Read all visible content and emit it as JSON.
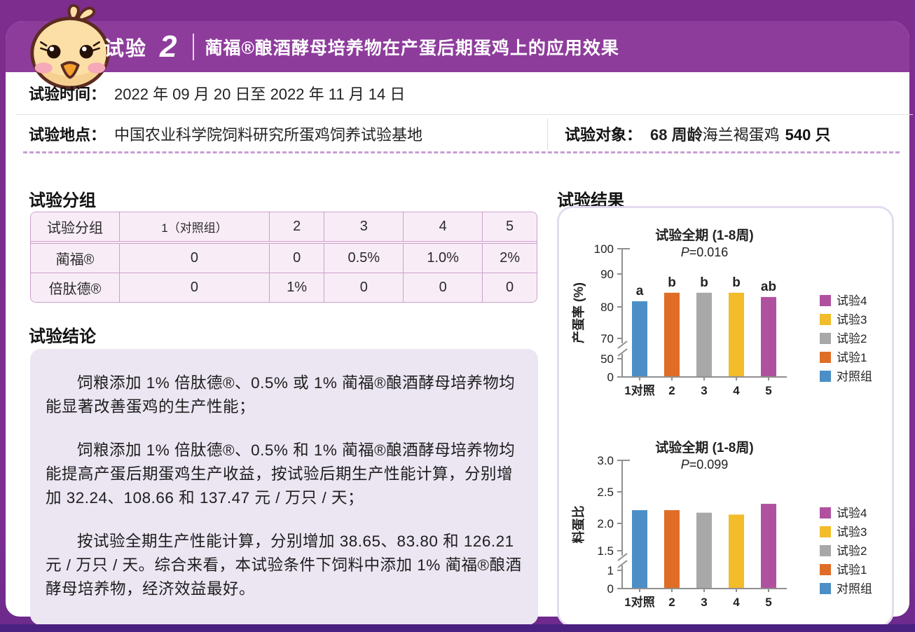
{
  "header": {
    "badge_label": "试验",
    "badge_number": "2",
    "title": "蔺福®酿酒酵母培养物在产蛋后期蛋鸡上的应用效果"
  },
  "info": {
    "time_label": "试验时间：",
    "time_value": "2022 年 09 月 20 日至 2022 年 11 月 14 日",
    "location_label": "试验地点：",
    "location_value": "中国农业科学院饲料研究所蛋鸡饲养试验基地",
    "subject_label": "试验对象：",
    "subject_bold_1": "68 周龄",
    "subject_value": "海兰褐蛋鸡",
    "subject_bold_2": "540 只"
  },
  "groups": {
    "heading": "试验分组",
    "columns": [
      "试验分组",
      "1（对照组）",
      "2",
      "3",
      "4",
      "5"
    ],
    "rows": [
      {
        "label": "蔺福®",
        "cells": [
          "0",
          "0",
          "0.5%",
          "1.0%",
          "2%"
        ]
      },
      {
        "label": "倍肽德®",
        "cells": [
          "0",
          "1%",
          "0",
          "0",
          "0"
        ]
      }
    ]
  },
  "conclusion": {
    "heading": "试验结论",
    "paragraphs": [
      "饲粮添加 1% 倍肽德®、0.5% 或 1% 蔺福®酿酒酵母培养物均能显著改善蛋鸡的生产性能；",
      "饲粮添加 1% 倍肽德®、0.5% 和 1% 蔺福®酿酒酵母培养物均能提高产蛋后期蛋鸡生产收益，按试验后期生产性能计算，分别增加 32.24、108.66 和 137.47 元 / 万只 / 天；",
      "按试验全期生产性能计算，分别增加 38.65、83.80 和 126.21 元 / 万只 / 天。综合来看，本试验条件下饲料中添加 1% 蔺福®酿酒酵母培养物，经济效益最好。"
    ]
  },
  "results": {
    "heading": "试验结果",
    "legend": [
      {
        "label": "试验4",
        "color": "#b0519f"
      },
      {
        "label": "试验3",
        "color": "#f2bc2a"
      },
      {
        "label": "试验2",
        "color": "#a8a8a8"
      },
      {
        "label": "试验1",
        "color": "#e06d26"
      },
      {
        "label": "对照组",
        "color": "#4b8fc6"
      }
    ]
  },
  "chart_data": [
    {
      "type": "bar",
      "title": "试验全期 (1-8周)",
      "p_value": "P=0.016",
      "ylabel": "产蛋率 (%)",
      "xlabel": "",
      "categories": [
        "1对照",
        "2",
        "3",
        "4",
        "5"
      ],
      "values": [
        81.7,
        84.3,
        84.3,
        84.3,
        83.0
      ],
      "bar_letters": [
        "a",
        "b",
        "b",
        "b",
        "ab"
      ],
      "bar_colors": [
        "#4b8fc6",
        "#e06d26",
        "#a8a8a8",
        "#f2bc2a",
        "#b0519f"
      ],
      "ylim": [
        0,
        100
      ],
      "grid": false,
      "legend_position": "right",
      "axis_break_after_tick": 1,
      "axis_bottom": 220,
      "yticks": [
        {
          "label": "0",
          "v": 0,
          "py": 0
        },
        {
          "label": "50",
          "v": 50,
          "py": 26
        },
        {
          "label": "70",
          "v": 70,
          "py": 55
        },
        {
          "label": "80",
          "v": 80,
          "py": 100
        },
        {
          "label": "90",
          "v": 90,
          "py": 147
        },
        {
          "label": "100",
          "v": 100,
          "py": 183
        }
      ]
    },
    {
      "type": "bar",
      "title": "试验全期 (1-8周)",
      "p_value": "P=0.099",
      "ylabel": "料蛋比",
      "xlabel": "",
      "categories": [
        "1对照",
        "2",
        "3",
        "4",
        "5"
      ],
      "values": [
        2.21,
        2.21,
        2.17,
        2.14,
        2.31
      ],
      "bar_letters": [
        "",
        "",
        "",
        "",
        ""
      ],
      "bar_colors": [
        "#4b8fc6",
        "#e06d26",
        "#a8a8a8",
        "#f2bc2a",
        "#b0519f"
      ],
      "ylim": [
        0,
        3.0
      ],
      "grid": false,
      "legend_position": "right",
      "axis_break_after_tick": 1,
      "axis_bottom": 219,
      "yticks": [
        {
          "label": "0",
          "v": 0,
          "py": 0
        },
        {
          "label": "1",
          "v": 1,
          "py": 26
        },
        {
          "label": "1.5",
          "v": 1.5,
          "py": 54
        },
        {
          "label": "2.0",
          "v": 2.0,
          "py": 93
        },
        {
          "label": "2.5",
          "v": 2.5,
          "py": 138
        },
        {
          "label": "3.0",
          "v": 3.0,
          "py": 183
        }
      ]
    }
  ],
  "colors": {
    "frame": "#7c2d8e",
    "header_band": "#8e3c9c",
    "bottom_strip": "#4a2180",
    "table_bg": "#f8edf7",
    "table_border": "#cf9fcc",
    "conclusion_panel_bg": "#ece6f3",
    "results_panel_border": "#e3dcf1",
    "dashed_divider": "#c79ed2",
    "axis": "#909090"
  }
}
